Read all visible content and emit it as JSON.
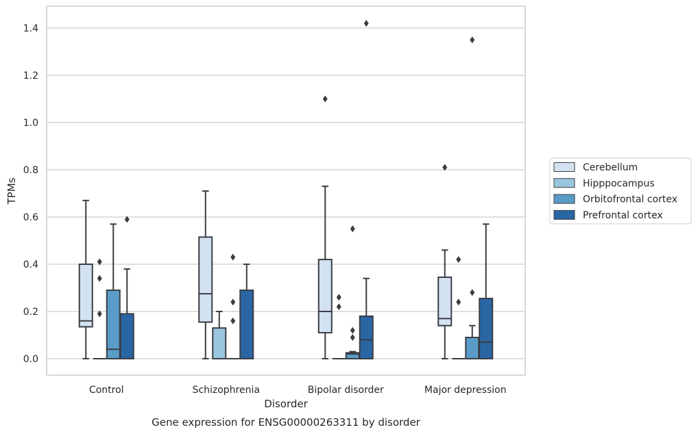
{
  "chart_data": {
    "type": "box",
    "title": "",
    "caption": "Gene expression for ENSG00000263311 by disorder",
    "xlabel": "Disorder",
    "ylabel": "TPMs",
    "ylim": [
      -0.07,
      1.49
    ],
    "yticks": [
      0.0,
      0.2,
      0.4,
      0.6,
      0.8,
      1.0,
      1.2,
      1.4
    ],
    "grid": true,
    "legend_placement": "right",
    "categories": [
      "Control",
      "Schizophrenia",
      "Bipolar disorder",
      "Major depression"
    ],
    "series": [
      {
        "name": "Cerebellum",
        "color": "#d3e2f1",
        "boxes": [
          {
            "category": "Control",
            "q1": 0.135,
            "median": 0.16,
            "q3": 0.4,
            "whisker_low": 0.0,
            "whisker_high": 0.67,
            "outliers": []
          },
          {
            "category": "Schizophrenia",
            "q1": 0.155,
            "median": 0.275,
            "q3": 0.515,
            "whisker_low": 0.0,
            "whisker_high": 0.71,
            "outliers": []
          },
          {
            "category": "Bipolar disorder",
            "q1": 0.11,
            "median": 0.2,
            "q3": 0.42,
            "whisker_low": 0.0,
            "whisker_high": 0.73,
            "outliers": [
              1.1
            ]
          },
          {
            "category": "Major depression",
            "q1": 0.14,
            "median": 0.17,
            "q3": 0.345,
            "whisker_low": 0.0,
            "whisker_high": 0.46,
            "outliers": [
              0.81
            ]
          }
        ]
      },
      {
        "name": "Hipppocampus",
        "color": "#9ac5de",
        "boxes": [
          {
            "category": "Control",
            "q1": 0.0,
            "median": 0.0,
            "q3": 0.0,
            "whisker_low": 0.0,
            "whisker_high": 0.0,
            "outliers": [
              0.19,
              0.34,
              0.41
            ]
          },
          {
            "category": "Schizophrenia",
            "q1": 0.0,
            "median": 0.0,
            "q3": 0.13,
            "whisker_low": 0.0,
            "whisker_high": 0.2,
            "outliers": []
          },
          {
            "category": "Bipolar disorder",
            "q1": 0.0,
            "median": 0.0,
            "q3": 0.0,
            "whisker_low": 0.0,
            "whisker_high": 0.0,
            "outliers": [
              0.22,
              0.26
            ]
          },
          {
            "category": "Major depression",
            "q1": 0.0,
            "median": 0.0,
            "q3": 0.0,
            "whisker_low": 0.0,
            "whisker_high": 0.0,
            "outliers": [
              0.24,
              0.42
            ]
          }
        ]
      },
      {
        "name": "Orbitofrontal cortex",
        "color": "#5a9cc8",
        "boxes": [
          {
            "category": "Control",
            "q1": 0.0,
            "median": 0.04,
            "q3": 0.29,
            "whisker_low": 0.0,
            "whisker_high": 0.57,
            "outliers": []
          },
          {
            "category": "Schizophrenia",
            "q1": 0.0,
            "median": 0.0,
            "q3": 0.0,
            "whisker_low": 0.0,
            "whisker_high": 0.0,
            "outliers": [
              0.16,
              0.24,
              0.43
            ]
          },
          {
            "category": "Bipolar disorder",
            "q1": 0.0,
            "median": 0.02,
            "q3": 0.025,
            "whisker_low": 0.0,
            "whisker_high": 0.03,
            "outliers": [
              0.09,
              0.12,
              0.55
            ]
          },
          {
            "category": "Major depression",
            "q1": 0.0,
            "median": 0.0,
            "q3": 0.09,
            "whisker_low": 0.0,
            "whisker_high": 0.14,
            "outliers": [
              0.28,
              1.35
            ]
          }
        ]
      },
      {
        "name": "Prefrontal cortex",
        "color": "#2a66a4",
        "boxes": [
          {
            "category": "Control",
            "q1": 0.0,
            "median": 0.0,
            "q3": 0.19,
            "whisker_low": 0.0,
            "whisker_high": 0.38,
            "outliers": [
              0.59
            ]
          },
          {
            "category": "Schizophrenia",
            "q1": 0.0,
            "median": 0.0,
            "q3": 0.29,
            "whisker_low": 0.0,
            "whisker_high": 0.4,
            "outliers": []
          },
          {
            "category": "Bipolar disorder",
            "q1": 0.0,
            "median": 0.08,
            "q3": 0.18,
            "whisker_low": 0.0,
            "whisker_high": 0.34,
            "outliers": [
              1.42
            ]
          },
          {
            "category": "Major depression",
            "q1": 0.0,
            "median": 0.07,
            "q3": 0.255,
            "whisker_low": 0.0,
            "whisker_high": 0.57,
            "outliers": []
          }
        ]
      }
    ]
  }
}
